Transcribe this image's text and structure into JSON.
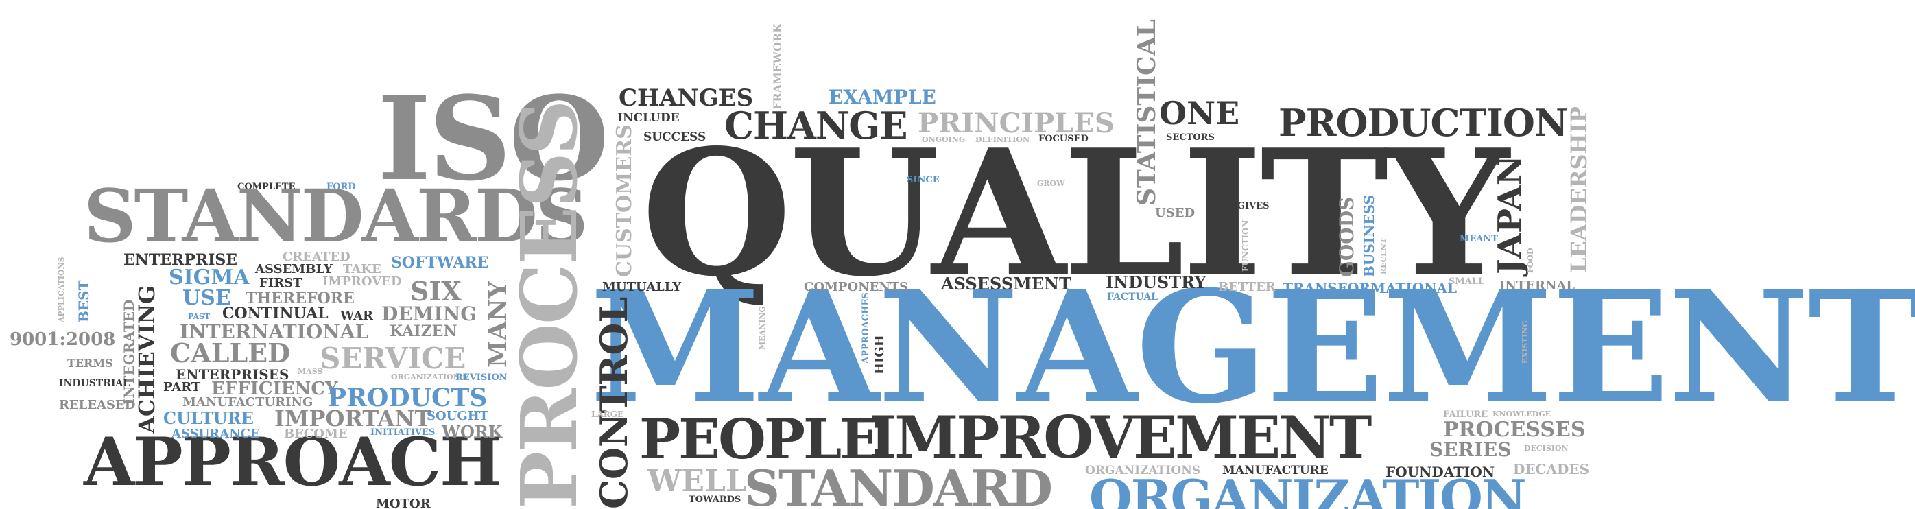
{
  "words": {
    "quality": "QUALITY",
    "management": "MANAGEMENT",
    "iso": "ISO",
    "standards": "STANDARDS",
    "approach": "APPROACH",
    "people": "PEOPLE",
    "improvement": "IMPROVEMENT",
    "standard": "STANDARD",
    "organization": "ORGANIZATION",
    "production": "PRODUCTION",
    "change": "CHANGE",
    "changes": "CHANGES",
    "principles": "PRINCIPLES",
    "one": "ONE",
    "example": "EXAMPLE",
    "include": "INCLUDE",
    "success": "SUCCESS",
    "framework": "FRAMEWORK",
    "statistical": "STATISTICAL",
    "leadership": "LEADERSHIP",
    "japan": "JAPAN",
    "customers": "CUSTOMERS",
    "process": "PROCESS",
    "control": "CONTROL",
    "many": "MANY",
    "achieving": "ACHIEVING",
    "integrated": "INTEGRATED",
    "best": "BEST",
    "applications": "APPLICATIONS",
    "enterprise": "ENTERPRISE",
    "created": "CREATED",
    "software": "SOFTWARE",
    "sigma": "SIGMA",
    "assembly": "ASSEMBLY",
    "take": "TAKE",
    "first": "FIRST",
    "improved": "IMPROVED",
    "six": "SIX",
    "use": "USE",
    "therefore": "THEREFORE",
    "continual": "CONTINUAL",
    "war": "WAR",
    "deming": "DEMING",
    "past": "PAST",
    "international": "INTERNATIONAL",
    "kaizen": "KAIZEN",
    "iso9001": "9001:2008",
    "called": "CALLED",
    "service": "SERVICE",
    "terms": "TERMS",
    "enterprises": "ENTERPRISES",
    "organizations_s": "ORGANIZATION'S",
    "industrial": "INDUSTRIAL",
    "part": "PART",
    "efficiency": "EFFICIENCY",
    "revision": "REVISION",
    "products": "PRODUCTS",
    "released": "RELEASED",
    "manufacturing": "MANUFACTURING",
    "culture": "CULTURE",
    "important": "IMPORTANT",
    "sought": "SOUGHT",
    "assurance": "ASSURANCE",
    "become": "BECOME",
    "initiatives": "INITIATIVES",
    "work": "WORK",
    "motor": "MOTOR",
    "complete": "COMPLETE",
    "ford": "FORD",
    "mass": "MASS",
    "mutually": "MUTUALLY",
    "components": "COMPONENTS",
    "assessment": "ASSESSMENT",
    "industry": "INDUSTRY",
    "factual": "FACTUAL",
    "better": "BETTER",
    "transformational": "TRANSFORMATIONAL",
    "internal": "INTERNAL",
    "since": "SINCE",
    "ongoing": "ONGOING",
    "definition": "DEFINITION",
    "focused": "FOCUSED",
    "sectors": "SECTORS",
    "used": "USED",
    "gives": "GIVES",
    "function": "FUNCTION",
    "goods": "GOODS",
    "business": "BUSINESS",
    "recent": "RECENT",
    "meant": "MEANT",
    "small": "SMALL",
    "food": "FOOD",
    "meaning": "MEANING",
    "approaches": "APPROACHES",
    "high": "HIGH",
    "existing": "EXISTING",
    "large": "LARGE",
    "failure": "FAILURE",
    "knowledge": "KNOWLEDGE",
    "processes": "PROCESSES",
    "series": "SERIES",
    "decision": "DECISION",
    "well": "WELL",
    "organizations": "ORGANIZATIONS",
    "manufacture": "MANUFACTURE",
    "foundation": "FOUNDATION",
    "decades": "DECADES",
    "towards": "TOWARDS",
    "grow": "GROW"
  }
}
